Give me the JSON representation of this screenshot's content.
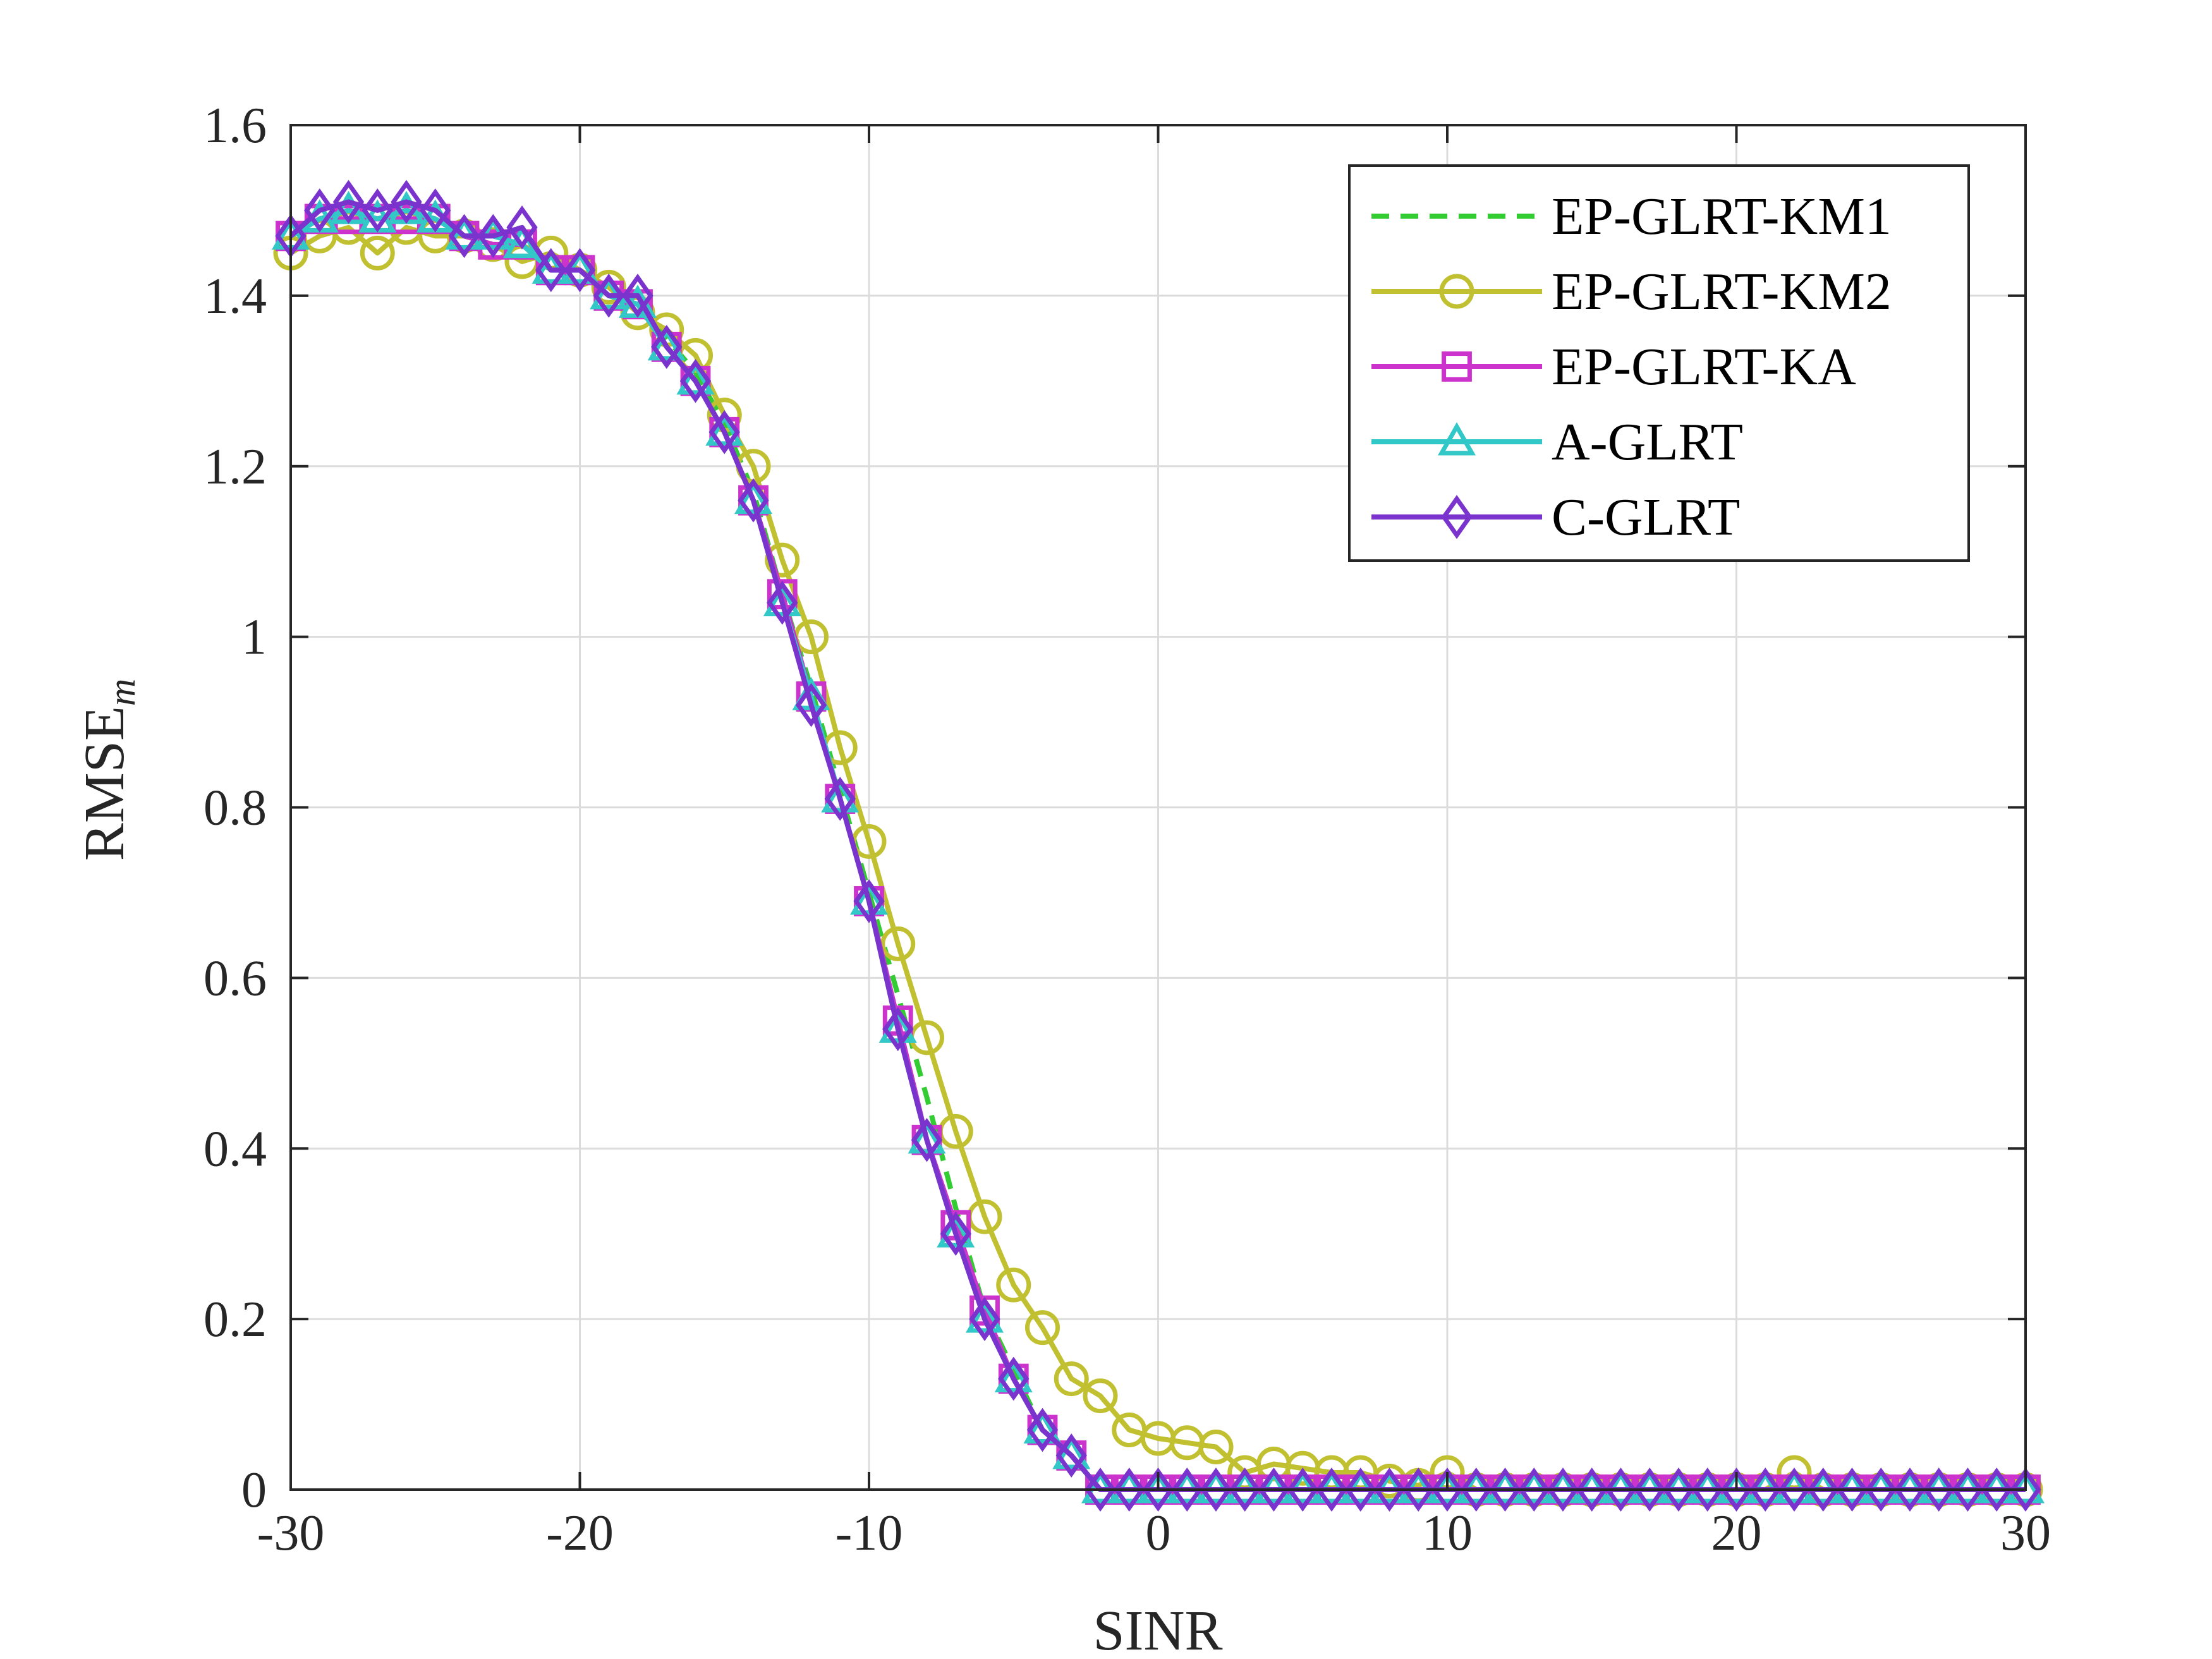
{
  "chart_data": {
    "type": "line",
    "title": "",
    "xlabel": "SINR",
    "ylabel_main": "RMSE",
    "ylabel_sub": "m",
    "xlim": [
      -30,
      30
    ],
    "ylim": [
      0,
      1.6
    ],
    "xticks": [
      -30,
      -20,
      -10,
      0,
      10,
      20,
      30
    ],
    "xtick_labels": [
      "-30",
      "-20",
      "-10",
      "0",
      "10",
      "20",
      "30"
    ],
    "yticks": [
      0,
      0.2,
      0.4,
      0.6,
      0.8,
      1,
      1.2,
      1.4,
      1.6
    ],
    "ytick_labels": [
      "0",
      "0.2",
      "0.4",
      "0.6",
      "0.8",
      "1",
      "1.2",
      "1.4",
      "1.6"
    ],
    "grid": true,
    "legend_position": "top-right",
    "x": [
      -30,
      -29,
      -28,
      -27,
      -26,
      -25,
      -24,
      -23,
      -22,
      -21,
      -20,
      -19,
      -18,
      -17,
      -16,
      -15,
      -14,
      -13,
      -12,
      -11,
      -10,
      -9,
      -8,
      -7,
      -6,
      -5,
      -4,
      -3,
      -2,
      -1,
      0,
      1,
      2,
      3,
      4,
      5,
      6,
      7,
      8,
      9,
      10,
      11,
      12,
      13,
      14,
      15,
      16,
      17,
      18,
      19,
      20,
      21,
      22,
      23,
      24,
      25,
      26,
      27,
      28,
      29,
      30
    ],
    "series": [
      {
        "name": "EP-GLRT-KM1",
        "color": "#33cc33",
        "line": "dashed",
        "marker": "none",
        "values": [
          1.47,
          1.49,
          1.5,
          1.49,
          1.5,
          1.49,
          1.47,
          1.46,
          1.46,
          1.44,
          1.43,
          1.4,
          1.39,
          1.35,
          1.31,
          1.25,
          1.17,
          1.05,
          0.94,
          0.82,
          0.7,
          0.58,
          0.46,
          0.33,
          0.21,
          0.14,
          0.07,
          0.04,
          0.0,
          0.0,
          0.0,
          0.0,
          0.0,
          0.0,
          0.0,
          0.0,
          0.0,
          0.0,
          0.0,
          0.0,
          0.0,
          0.0,
          0.0,
          0.0,
          0.0,
          0.0,
          0.0,
          0.0,
          0.0,
          0.0,
          0.0,
          0.0,
          0.0,
          0.0,
          0.0,
          0.0,
          0.0,
          0.0,
          0.0,
          0.0,
          0.0
        ]
      },
      {
        "name": "EP-GLRT-KM2",
        "color": "#c0c030",
        "line": "solid",
        "marker": "circle",
        "values": [
          1.45,
          1.47,
          1.48,
          1.45,
          1.48,
          1.47,
          1.47,
          1.46,
          1.44,
          1.45,
          1.43,
          1.41,
          1.38,
          1.36,
          1.33,
          1.26,
          1.2,
          1.09,
          1.0,
          0.87,
          0.76,
          0.64,
          0.53,
          0.42,
          0.32,
          0.24,
          0.19,
          0.13,
          0.11,
          0.07,
          0.06,
          0.055,
          0.05,
          0.02,
          0.03,
          0.025,
          0.02,
          0.02,
          0.01,
          0.005,
          0.02,
          0.0,
          0.0,
          0.0,
          0.0,
          0.0,
          0.0,
          0.0,
          0.0,
          0.0,
          0.0,
          0.0,
          0.02,
          0.0,
          0.0,
          0.0,
          0.0,
          0.0,
          0.0,
          0.0,
          0.0
        ]
      },
      {
        "name": "EP-GLRT-KA",
        "color": "#cc33cc",
        "line": "solid",
        "marker": "square",
        "values": [
          1.47,
          1.49,
          1.49,
          1.49,
          1.49,
          1.49,
          1.47,
          1.46,
          1.46,
          1.43,
          1.43,
          1.4,
          1.39,
          1.34,
          1.3,
          1.24,
          1.16,
          1.05,
          0.93,
          0.81,
          0.69,
          0.55,
          0.41,
          0.31,
          0.21,
          0.13,
          0.07,
          0.04,
          0.0,
          0.0,
          0.0,
          0.0,
          0.0,
          0.0,
          0.0,
          0.0,
          0.0,
          0.0,
          0.0,
          0.0,
          0.0,
          0.0,
          0.0,
          0.0,
          0.0,
          0.0,
          0.0,
          0.0,
          0.0,
          0.0,
          0.0,
          0.0,
          0.0,
          0.0,
          0.0,
          0.0,
          0.0,
          0.0,
          0.0,
          0.0,
          0.0
        ]
      },
      {
        "name": "A-GLRT",
        "color": "#33c8c8",
        "line": "solid",
        "marker": "triangle",
        "values": [
          1.47,
          1.49,
          1.5,
          1.49,
          1.5,
          1.49,
          1.47,
          1.47,
          1.46,
          1.43,
          1.43,
          1.4,
          1.39,
          1.34,
          1.3,
          1.24,
          1.16,
          1.04,
          0.93,
          0.81,
          0.69,
          0.54,
          0.41,
          0.3,
          0.2,
          0.13,
          0.07,
          0.04,
          0.0,
          0.0,
          0.0,
          0.0,
          0.0,
          0.0,
          0.0,
          0.0,
          0.0,
          0.0,
          0.0,
          0.0,
          0.0,
          0.0,
          0.0,
          0.0,
          0.0,
          0.0,
          0.0,
          0.0,
          0.0,
          0.0,
          0.0,
          0.0,
          0.0,
          0.0,
          0.0,
          0.0,
          0.0,
          0.0,
          0.0,
          0.0,
          0.0
        ]
      },
      {
        "name": "C-GLRT",
        "color": "#7a33cc",
        "line": "solid",
        "marker": "diamond",
        "values": [
          1.47,
          1.5,
          1.51,
          1.5,
          1.51,
          1.5,
          1.47,
          1.47,
          1.48,
          1.43,
          1.43,
          1.4,
          1.4,
          1.34,
          1.3,
          1.24,
          1.16,
          1.04,
          0.92,
          0.81,
          0.69,
          0.54,
          0.41,
          0.3,
          0.2,
          0.13,
          0.07,
          0.04,
          0.0,
          0.0,
          0.0,
          0.0,
          0.0,
          0.0,
          0.0,
          0.0,
          0.0,
          0.0,
          0.0,
          0.0,
          0.0,
          0.0,
          0.0,
          0.0,
          0.0,
          0.0,
          0.0,
          0.0,
          0.0,
          0.0,
          0.0,
          0.0,
          0.0,
          0.0,
          0.0,
          0.0,
          0.0,
          0.0,
          0.0,
          0.0,
          0.0
        ]
      }
    ]
  }
}
